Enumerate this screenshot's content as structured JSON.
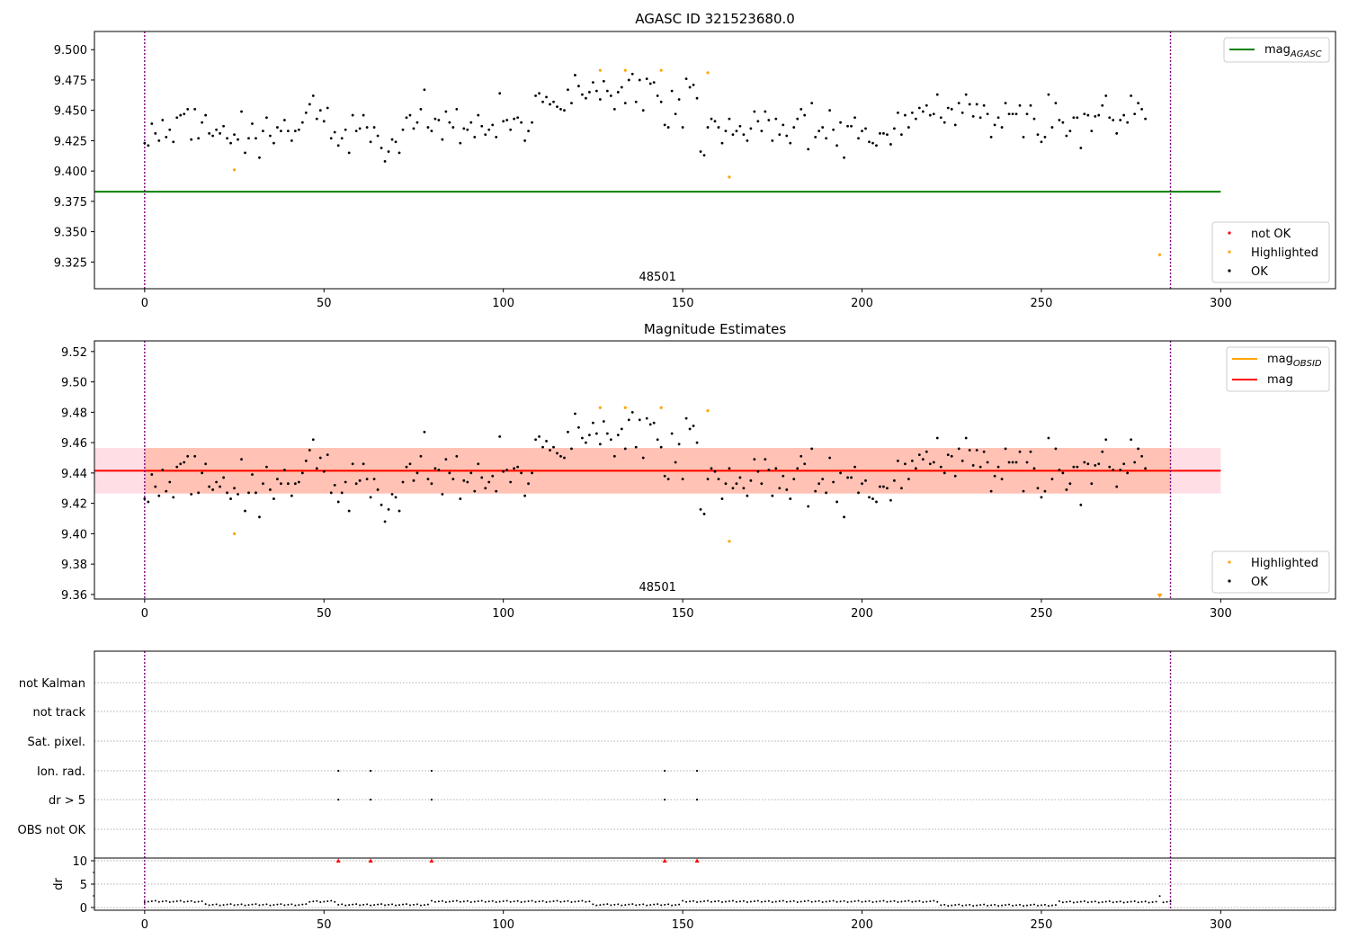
{
  "figure": {
    "colors": {
      "ok": "#000000",
      "highlighted": "#ffa500",
      "not_ok": "#ff0000",
      "mag_agasc": "#008000",
      "mag_obsid": "#ffa500",
      "mag": "#ff0000",
      "band_obsid": "#ffa07a",
      "band_mag": "#ffc0cb",
      "boundary": "#800080"
    }
  },
  "chart_data": [
    {
      "type": "scatter",
      "title": "AGASC ID 321523680.0",
      "xlim": [
        -14,
        332
      ],
      "ylim": [
        9.303,
        9.515
      ],
      "x_ticks": [
        0,
        50,
        100,
        150,
        200,
        250,
        300
      ],
      "y_ticks": [
        "9.500",
        "9.475",
        "9.450",
        "9.425",
        "9.400",
        "9.375",
        "9.350",
        "9.325"
      ],
      "obsid_label": "48501",
      "obsid_label_x": 143,
      "obs_boundaries": [
        0,
        286
      ],
      "hline": {
        "name": "mag",
        "sub": "AGASC",
        "y": 9.383,
        "x_range": [
          -14,
          300
        ]
      },
      "legends": {
        "lines": [
          {
            "name": "mag",
            "sub": "AGASC"
          }
        ],
        "markers": [
          "not OK",
          "Highlighted",
          "OK"
        ]
      },
      "series": [
        {
          "name": "OK",
          "values": [
            9.423,
            9.421,
            9.439,
            9.431,
            9.425,
            9.442,
            9.428,
            9.434,
            9.424,
            9.444,
            9.446,
            9.447,
            9.451,
            9.426,
            9.451,
            9.427,
            9.44,
            9.446,
            9.431,
            9.429,
            9.434,
            9.431,
            9.437,
            9.427,
            9.423,
            9.43,
            9.426,
            9.449,
            9.415,
            9.427,
            9.439,
            9.427,
            9.411,
            9.433,
            9.444,
            9.429,
            9.423,
            9.436,
            9.433,
            9.442,
            9.433,
            9.425,
            9.433,
            9.434,
            9.44,
            9.448,
            9.455,
            9.462,
            9.443,
            9.45,
            9.441,
            9.452,
            9.427,
            9.432,
            9.421,
            9.427,
            9.434,
            9.415,
            9.446,
            9.433,
            9.435,
            9.446,
            9.436,
            9.424,
            9.436,
            9.429,
            9.419,
            9.408,
            9.416,
            9.426,
            9.424,
            9.415,
            9.434,
            9.444,
            9.446,
            9.435,
            9.44,
            9.451,
            9.467,
            9.436,
            9.433,
            9.443,
            9.442,
            9.426,
            9.449,
            9.44,
            9.436,
            9.451,
            9.423,
            9.435,
            9.434,
            9.44,
            9.428,
            9.446,
            9.437,
            9.43,
            9.434,
            9.438,
            9.428,
            9.464,
            9.441,
            9.442,
            9.434,
            9.443,
            9.444,
            9.44,
            9.425,
            9.433,
            9.44,
            9.462,
            9.464,
            9.457,
            9.461,
            9.455,
            9.457,
            9.453,
            9.451,
            9.45,
            9.467,
            9.456,
            9.479,
            9.47,
            9.463,
            9.46,
            9.465,
            9.473,
            9.466,
            9.459,
            9.474,
            9.466,
            9.462,
            9.451,
            9.465,
            9.469,
            9.456,
            9.475,
            9.48,
            9.457,
            9.475,
            9.45,
            9.476,
            9.472,
            9.473,
            9.462,
            9.457,
            9.438,
            9.436,
            9.466,
            9.447,
            9.459,
            9.436,
            9.476,
            9.469,
            9.471,
            9.46,
            9.416,
            9.413,
            9.436,
            9.443,
            9.441,
            9.436,
            9.423,
            9.433,
            9.443,
            9.43,
            9.433,
            9.437,
            9.43,
            9.425,
            9.435,
            9.449,
            9.441,
            9.433,
            9.449,
            9.442,
            9.425,
            9.443,
            9.43,
            9.438,
            9.429,
            9.423,
            9.436,
            9.443,
            9.451,
            9.446,
            9.418,
            9.456,
            9.428,
            9.433,
            9.436,
            9.427,
            9.45,
            9.434,
            9.421,
            9.44,
            9.411,
            9.437,
            9.437,
            9.444,
            9.427,
            9.433,
            9.435,
            9.424,
            9.423,
            9.421,
            9.431,
            9.431,
            9.43,
            9.422,
            9.435,
            9.448,
            9.43,
            9.446,
            9.436,
            9.448,
            9.443,
            9.452,
            9.449,
            9.454,
            9.446,
            9.447,
            9.463,
            9.444,
            9.44,
            9.452,
            9.451,
            9.438,
            9.456,
            9.448,
            9.463,
            9.455,
            9.445,
            9.455,
            9.444,
            9.454,
            9.447,
            9.428,
            9.438,
            9.444,
            9.436,
            9.456,
            9.447,
            9.447,
            9.447,
            9.454,
            9.428,
            9.447,
            9.454,
            9.443,
            9.43,
            9.424,
            9.428,
            9.463,
            9.436,
            9.456,
            9.442,
            9.44,
            9.429,
            9.433,
            9.444,
            9.444,
            9.419,
            9.447,
            9.446,
            9.433,
            9.445,
            9.446,
            9.454,
            9.462,
            9.444,
            9.442,
            9.431,
            9.442,
            9.446,
            9.44,
            9.462,
            9.447,
            9.456,
            9.451,
            9.443
          ]
        },
        {
          "name": "Highlighted",
          "x": [
            25,
            127,
            134,
            144,
            157,
            163,
            283
          ],
          "values": [
            9.401,
            9.483,
            9.483,
            9.483,
            9.481,
            9.395,
            9.331
          ]
        }
      ]
    },
    {
      "type": "scatter",
      "title": "Magnitude Estimates",
      "xlim": [
        -14,
        332
      ],
      "ylim": [
        9.357,
        9.527
      ],
      "x_ticks": [
        0,
        50,
        100,
        150,
        200,
        250,
        300
      ],
      "y_ticks": [
        "9.52",
        "9.50",
        "9.48",
        "9.46",
        "9.44",
        "9.42",
        "9.40",
        "9.38",
        "9.36"
      ],
      "obsid_label": "48501",
      "obsid_label_x": 143,
      "obs_boundaries": [
        0,
        286
      ],
      "hline": {
        "name": "mag",
        "y": 9.4415,
        "x_range": [
          -14,
          300
        ]
      },
      "band_mag": [
        9.4265,
        9.4565
      ],
      "band_obsid": [
        9.4265,
        9.4565
      ],
      "legends": {
        "lines": [
          {
            "name": "mag",
            "sub": "OBSID"
          },
          {
            "name": "mag",
            "sub": ""
          }
        ],
        "markers": [
          "Highlighted",
          "OK"
        ]
      },
      "series": [
        {
          "name": "Highlighted",
          "x": [
            25,
            127,
            134,
            144,
            157,
            163
          ],
          "values": [
            9.4,
            9.483,
            9.483,
            9.483,
            9.481,
            9.395
          ],
          "off_axis_x": 283
        }
      ]
    },
    {
      "type": "scatter",
      "title": "",
      "xlim": [
        -14,
        332
      ],
      "x_ticks": [
        0,
        50,
        100,
        150,
        200,
        250,
        300
      ],
      "obs_boundaries": [
        0,
        286
      ],
      "flag_rows": [
        "not Kalman",
        "not track",
        "Sat. pixel.",
        "Ion. rad.",
        "dr > 5",
        "OBS not OK"
      ],
      "flags": {
        "Ion. rad.": [
          54,
          63,
          80,
          145,
          154
        ],
        "dr > 5": [
          54,
          63,
          80,
          145,
          154
        ]
      },
      "dr_ylabel": "dr",
      "dr_ticks": [
        "10",
        "5",
        "0"
      ],
      "dr_clipped_x": [
        54,
        63,
        80,
        145,
        154
      ],
      "dr_segments": [
        [
          0,
          17,
          1.3
        ],
        [
          17,
          46,
          0.6
        ],
        [
          46,
          54,
          1.3
        ],
        [
          54,
          80,
          0.6
        ],
        [
          80,
          125,
          1.3
        ],
        [
          125,
          150,
          0.6
        ],
        [
          150,
          222,
          1.3
        ],
        [
          222,
          255,
          0.5
        ],
        [
          255,
          287,
          1.2
        ]
      ]
    }
  ]
}
